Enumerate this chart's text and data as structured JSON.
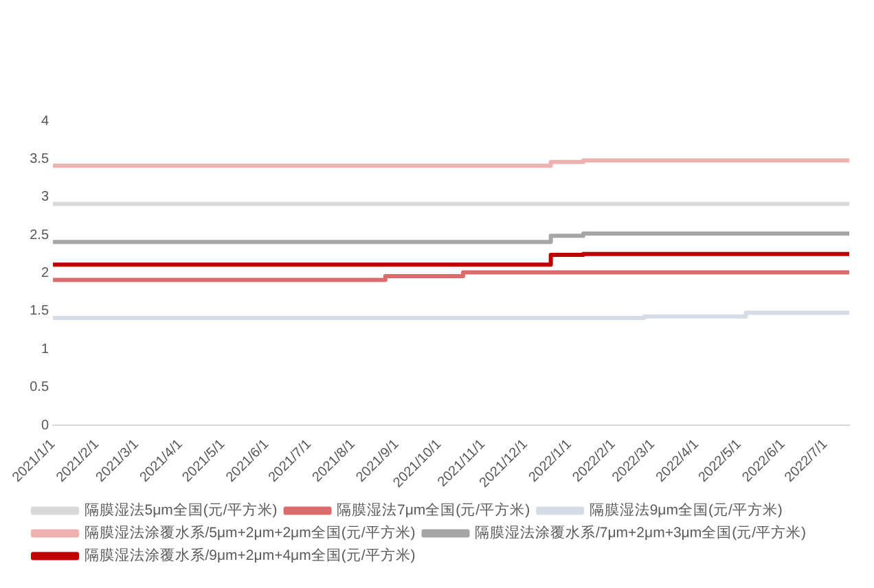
{
  "chart_data": {
    "type": "step",
    "legend": "bottom",
    "grid": false,
    "ylim": [
      0,
      4
    ],
    "yticks": [
      0,
      0.5,
      1,
      1.5,
      2,
      2.5,
      3,
      3.5,
      4
    ],
    "xlim": [
      "2021-01-01",
      "2022-07-18"
    ],
    "xticks": [
      {
        "value": "2021-01-01",
        "label": "2021/1/1"
      },
      {
        "value": "2021-02-01",
        "label": "2021/2/1"
      },
      {
        "value": "2021-03-01",
        "label": "2021/3/1"
      },
      {
        "value": "2021-04-01",
        "label": "2021/4/1"
      },
      {
        "value": "2021-05-01",
        "label": "2021/5/1"
      },
      {
        "value": "2021-06-01",
        "label": "2021/6/1"
      },
      {
        "value": "2021-07-01",
        "label": "2021/7/1"
      },
      {
        "value": "2021-08-01",
        "label": "2021/8/1"
      },
      {
        "value": "2021-09-01",
        "label": "2021/9/1"
      },
      {
        "value": "2021-10-01",
        "label": "2021/10/1"
      },
      {
        "value": "2021-11-01",
        "label": "2021/11/1"
      },
      {
        "value": "2021-12-01",
        "label": "2021/12/1"
      },
      {
        "value": "2022-01-01",
        "label": "2022/1/1"
      },
      {
        "value": "2022-02-01",
        "label": "2022/2/1"
      },
      {
        "value": "2022-03-01",
        "label": "2022/3/1"
      },
      {
        "value": "2022-04-01",
        "label": "2022/4/1"
      },
      {
        "value": "2022-05-01",
        "label": "2022/5/1"
      },
      {
        "value": "2022-06-01",
        "label": "2022/6/1"
      },
      {
        "value": "2022-07-01",
        "label": "2022/7/1"
      }
    ],
    "series": [
      {
        "name": "隔膜湿法5μm全国(元/平方米)",
        "color": "#d9d9d9",
        "x": [
          "2021-01-01",
          "2022-07-18"
        ],
        "values": [
          2.91,
          2.91
        ]
      },
      {
        "name": "隔膜湿法7μm全国(元/平方米)",
        "color": "#de6b6b",
        "x": [
          "2021-01-01",
          "2021-08-24",
          "2021-10-18",
          "2022-07-18"
        ],
        "values": [
          1.91,
          1.96,
          2.01,
          2.01
        ]
      },
      {
        "name": "隔膜湿法9μm全国(元/平方米)",
        "color": "#d6dce5",
        "x": [
          "2021-01-01",
          "2022-02-23",
          "2022-05-06",
          "2022-07-18"
        ],
        "values": [
          1.41,
          1.43,
          1.48,
          1.48
        ]
      },
      {
        "name": "隔膜湿法涂覆水系/5μm+2μm+2μm全国(元/平方米)",
        "color": "#efb0b0",
        "x": [
          "2021-01-01",
          "2021-12-19",
          "2022-01-11",
          "2022-07-18"
        ],
        "values": [
          3.41,
          3.46,
          3.48,
          3.48
        ]
      },
      {
        "name": "隔膜湿法涂覆水系/7μm+2μm+3μm全国(元/平方米)",
        "color": "#a6a6a6",
        "x": [
          "2021-01-01",
          "2021-12-19",
          "2022-01-11",
          "2022-07-18"
        ],
        "values": [
          2.41,
          2.49,
          2.52,
          2.52
        ]
      },
      {
        "name": "隔膜湿法涂覆水系/9μm+2μm+4μm全国(元/平方米)",
        "color": "#c00000",
        "x": [
          "2021-01-01",
          "2021-12-19",
          "2022-01-11",
          "2022-07-18"
        ],
        "values": [
          2.11,
          2.24,
          2.25,
          2.25
        ]
      }
    ]
  }
}
